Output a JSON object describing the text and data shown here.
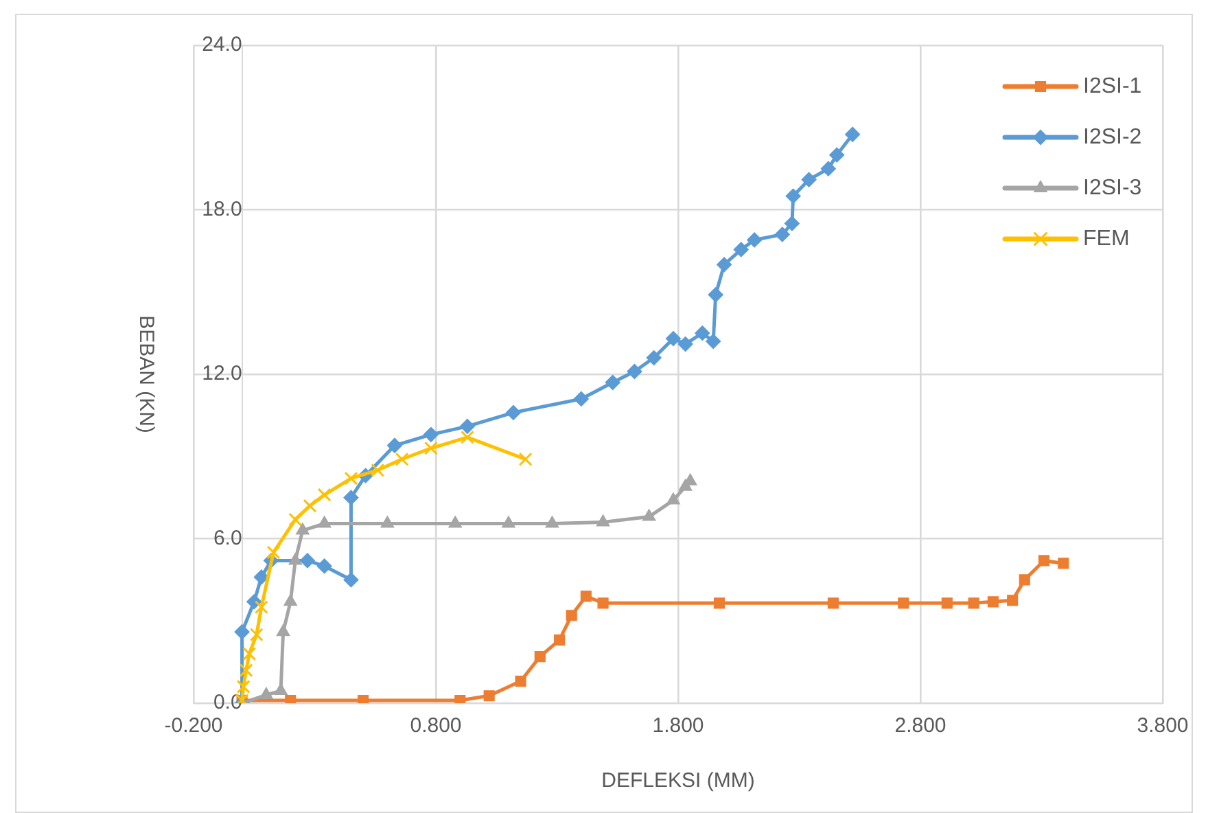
{
  "chart_data": {
    "type": "line",
    "xlabel": "DEFLEKSI (MM)",
    "ylabel": "BEBAN (KN)",
    "xlim": [
      -0.2,
      3.8
    ],
    "xticks": [
      {
        "value": -0.2,
        "label": "-0.200"
      },
      {
        "value": 0.8,
        "label": "0.800"
      },
      {
        "value": 1.8,
        "label": "1.800"
      },
      {
        "value": 2.8,
        "label": "2.800"
      },
      {
        "value": 3.8,
        "label": "3.800"
      }
    ],
    "ylim": [
      0,
      24
    ],
    "yticks": [
      {
        "value": 0,
        "label": "0.0"
      },
      {
        "value": 6,
        "label": "6.0"
      },
      {
        "value": 12,
        "label": "12.0"
      },
      {
        "value": 18,
        "label": "18.0"
      },
      {
        "value": 24,
        "label": "24.0"
      }
    ],
    "grid": true,
    "legend": "right",
    "line_style": "solid",
    "series": [
      {
        "name": "I2SI-1",
        "color": "#ed7d31",
        "marker": "square",
        "x": [
          0,
          0.2,
          0.5,
          0.9,
          1.02,
          1.15,
          1.23,
          1.31,
          1.36,
          1.42,
          1.49,
          1.97,
          2.44,
          2.73,
          2.91,
          3.02,
          3.1,
          3.18,
          3.23,
          3.31,
          3.39
        ],
        "values": [
          0.1,
          0.1,
          0.1,
          0.1,
          0.27,
          0.8,
          1.7,
          2.3,
          3.2,
          3.9,
          3.65,
          3.65,
          3.65,
          3.65,
          3.65,
          3.65,
          3.7,
          3.75,
          4.5,
          5.2,
          5.1
        ]
      },
      {
        "name": "I2SI-2",
        "color": "#5b9bd5",
        "marker": "diamond",
        "x": [
          0,
          0,
          0.05,
          0.08,
          0.12,
          0.27,
          0.34,
          0.45,
          0.45,
          0.51,
          0.63,
          0.78,
          0.93,
          1.12,
          1.4,
          1.53,
          1.62,
          1.7,
          1.78,
          1.83,
          1.9,
          1.945,
          1.955,
          1.99,
          2.06,
          2.115,
          2.23,
          2.27,
          2.275,
          2.34,
          2.42,
          2.455,
          2.52
        ],
        "values": [
          0,
          2.6,
          3.7,
          4.6,
          5.2,
          5.2,
          5.0,
          4.5,
          7.5,
          8.3,
          9.4,
          9.8,
          10.1,
          10.6,
          11.1,
          11.7,
          12.1,
          12.6,
          13.3,
          13.1,
          13.5,
          13.2,
          14.9,
          16.0,
          16.55,
          16.9,
          17.1,
          17.5,
          18.5,
          19.1,
          19.5,
          20.0,
          20.75
        ]
      },
      {
        "name": "I2SI-3",
        "color": "#a5a5a5",
        "marker": "triangle",
        "x": [
          0,
          0.1,
          0.16,
          0.17,
          0.2,
          0.22,
          0.25,
          0.34,
          0.6,
          0.88,
          1.1,
          1.28,
          1.49,
          1.68,
          1.78,
          1.83,
          1.85
        ],
        "values": [
          0,
          0.3,
          0.45,
          2.6,
          3.7,
          5.2,
          6.3,
          6.55,
          6.55,
          6.55,
          6.55,
          6.55,
          6.6,
          6.8,
          7.4,
          7.9,
          8.1
        ]
      },
      {
        "name": "FEM",
        "color": "#ffc000",
        "marker": "cross",
        "x": [
          0,
          0.006,
          0.017,
          0.03,
          0.06,
          0.08,
          0.13,
          0.22,
          0.28,
          0.34,
          0.45,
          0.56,
          0.66,
          0.78,
          0.93,
          1.17
        ],
        "values": [
          0.1,
          0.6,
          1.2,
          1.8,
          2.5,
          3.5,
          5.5,
          6.7,
          7.2,
          7.6,
          8.2,
          8.5,
          8.9,
          9.3,
          9.7,
          8.9
        ]
      }
    ]
  }
}
